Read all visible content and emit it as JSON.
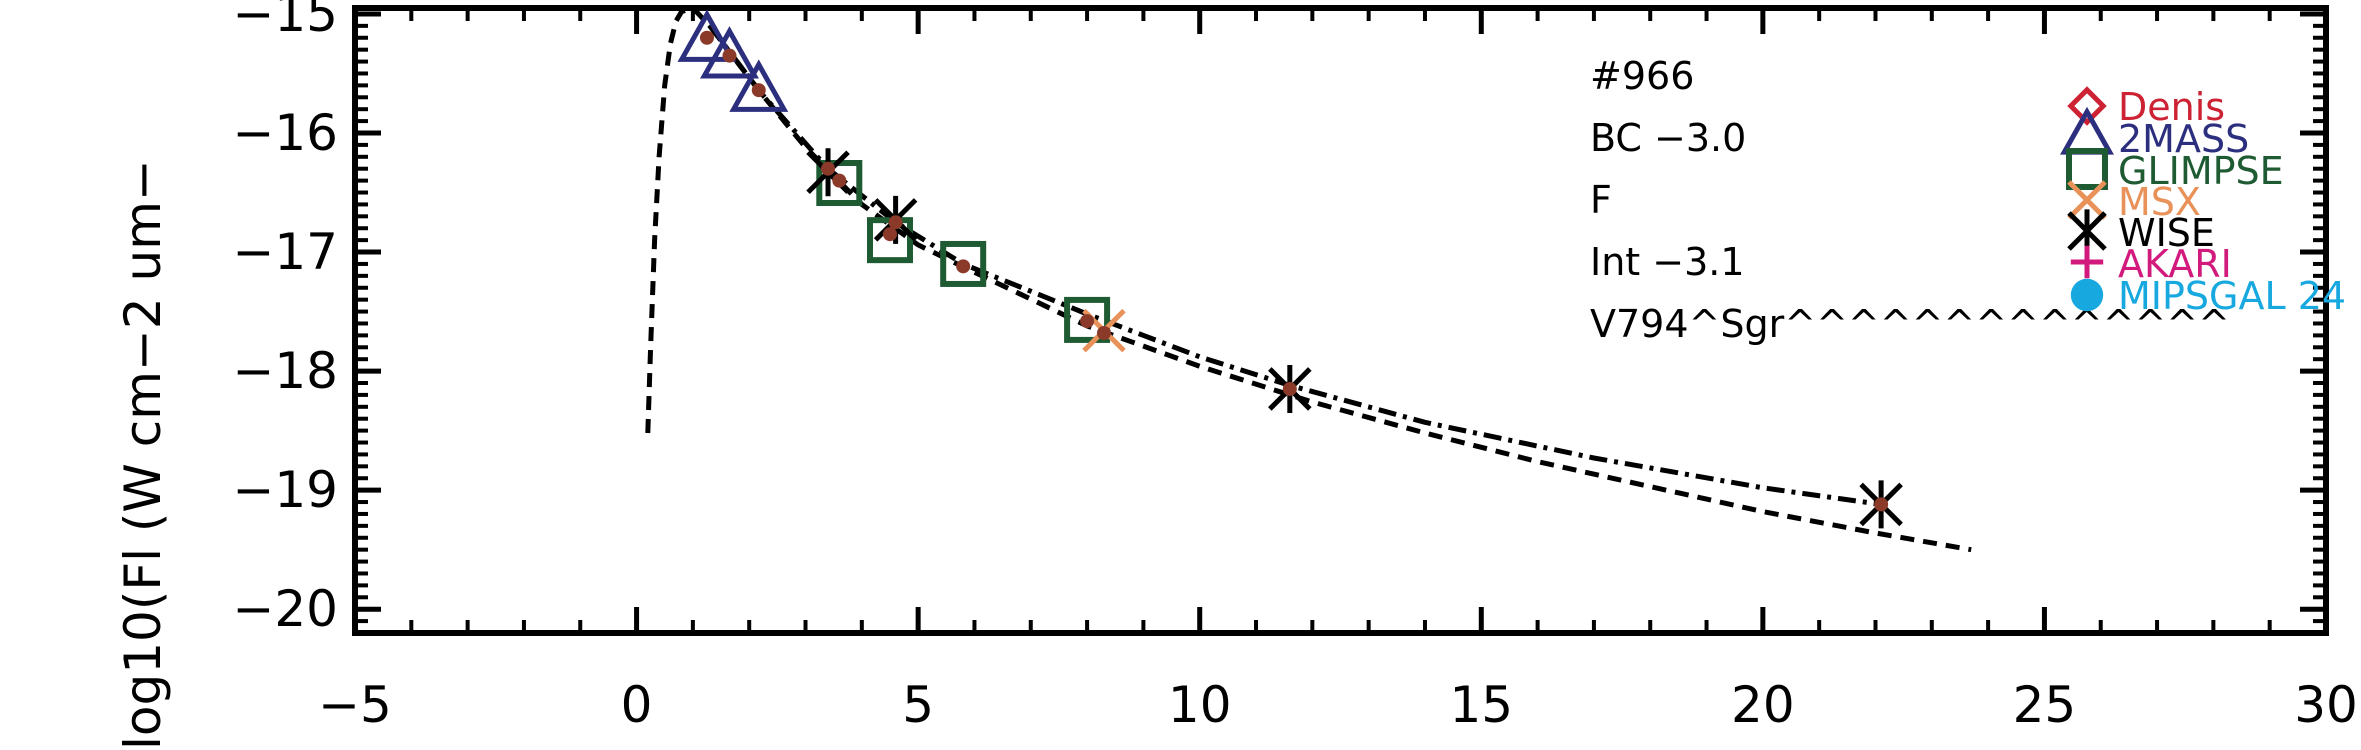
{
  "chart_data": {
    "type": "scatter",
    "title": "",
    "ylabel": "log10(Fl (W cm−2 um−",
    "xlabel": "",
    "xlim": [
      -5,
      30
    ],
    "ylim": [
      -20.2,
      -14.95
    ],
    "xticks": [
      -5,
      0,
      5,
      10,
      15,
      20,
      25,
      30
    ],
    "xtick_labels": [
      "−5",
      "0",
      "5",
      "10",
      "15",
      "20",
      "25",
      "30"
    ],
    "yticks": [
      -15,
      -16,
      -17,
      -18,
      -19,
      -20
    ],
    "ytick_labels": [
      "−15",
      "−16",
      "−17",
      "−18",
      "−19",
      "−20"
    ],
    "annotations": [
      "#966",
      "BC  −3.0",
      "F",
      "Int  −3.1",
      "V794^Sgr^^^^^^^^^^^^^^"
    ],
    "legend": {
      "placement": "right",
      "entries": [
        {
          "name": "Denis",
          "symbol": "diamond",
          "color": "#cc2233"
        },
        {
          "name": "2MASS",
          "symbol": "triangle",
          "color": "#2b2f7e"
        },
        {
          "name": "GLIMPSE",
          "symbol": "square",
          "color": "#1e5a32"
        },
        {
          "name": "MSX",
          "symbol": "x",
          "color": "#e8925a"
        },
        {
          "name": "WISE",
          "symbol": "asterisk",
          "color": "#000000"
        },
        {
          "name": "AKARI",
          "symbol": "plus",
          "color": "#d21a7d"
        },
        {
          "name": "MIPSGAL  24",
          "symbol": "circle",
          "color": "#18a8e0"
        }
      ]
    },
    "series": [
      {
        "survey": "2MASS",
        "symbol": "triangle",
        "color": "#2b2f7e",
        "points": [
          [
            1.25,
            -15.24
          ],
          [
            1.65,
            -15.38
          ],
          [
            2.17,
            -15.66
          ]
        ]
      },
      {
        "survey": "GLIMPSE",
        "symbol": "square",
        "color": "#1e5a32",
        "points": [
          [
            3.6,
            -16.42
          ],
          [
            4.5,
            -16.9
          ],
          [
            5.8,
            -17.1
          ],
          [
            8.0,
            -17.57
          ]
        ]
      },
      {
        "survey": "MSX",
        "symbol": "x",
        "color": "#e8925a",
        "points": [
          [
            8.3,
            -17.66
          ]
        ]
      },
      {
        "survey": "WISE",
        "symbol": "asterisk",
        "color": "#000000",
        "points": [
          [
            3.4,
            -16.33
          ],
          [
            4.6,
            -16.73
          ],
          [
            11.6,
            -18.15
          ],
          [
            22.1,
            -19.12
          ]
        ]
      },
      {
        "survey": "model",
        "symbol": "dot",
        "color": "#8b3a2a",
        "points": [
          [
            1.25,
            -15.2
          ],
          [
            1.65,
            -15.35
          ],
          [
            2.17,
            -15.64
          ],
          [
            3.4,
            -16.3
          ],
          [
            3.6,
            -16.4
          ],
          [
            4.5,
            -16.85
          ],
          [
            4.6,
            -16.75
          ],
          [
            5.8,
            -17.12
          ],
          [
            8.0,
            -17.58
          ],
          [
            8.3,
            -17.68
          ],
          [
            11.6,
            -18.15
          ],
          [
            22.1,
            -19.12
          ]
        ]
      }
    ],
    "curves": [
      {
        "style": "dashed",
        "points": [
          [
            0.2,
            -18.52
          ],
          [
            0.25,
            -17.8
          ],
          [
            0.32,
            -16.9
          ],
          [
            0.4,
            -16.2
          ],
          [
            0.5,
            -15.6
          ],
          [
            0.6,
            -15.25
          ],
          [
            0.7,
            -15.06
          ],
          [
            0.8,
            -14.98
          ],
          [
            1.0,
            -14.95
          ],
          [
            1.3,
            -15.1
          ],
          [
            1.7,
            -15.35
          ],
          [
            2.2,
            -15.66
          ],
          [
            3.0,
            -16.12
          ],
          [
            4.0,
            -16.6
          ],
          [
            5.0,
            -16.94
          ],
          [
            6.0,
            -17.17
          ],
          [
            8.0,
            -17.62
          ],
          [
            10.0,
            -17.96
          ],
          [
            12.0,
            -18.26
          ],
          [
            14.0,
            -18.52
          ],
          [
            16.0,
            -18.76
          ],
          [
            18.0,
            -18.97
          ],
          [
            20.0,
            -19.18
          ],
          [
            22.0,
            -19.36
          ],
          [
            23.7,
            -19.5
          ]
        ]
      },
      {
        "style": "dash-dot",
        "points": [
          [
            1.3,
            -15.1
          ],
          [
            2.2,
            -15.66
          ],
          [
            3.4,
            -16.3
          ],
          [
            4.6,
            -16.75
          ],
          [
            5.8,
            -17.1
          ],
          [
            8.0,
            -17.52
          ],
          [
            10.0,
            -17.88
          ],
          [
            11.6,
            -18.12
          ],
          [
            14.0,
            -18.43
          ],
          [
            17.0,
            -18.73
          ],
          [
            20.0,
            -18.98
          ],
          [
            22.1,
            -19.12
          ]
        ]
      }
    ]
  }
}
